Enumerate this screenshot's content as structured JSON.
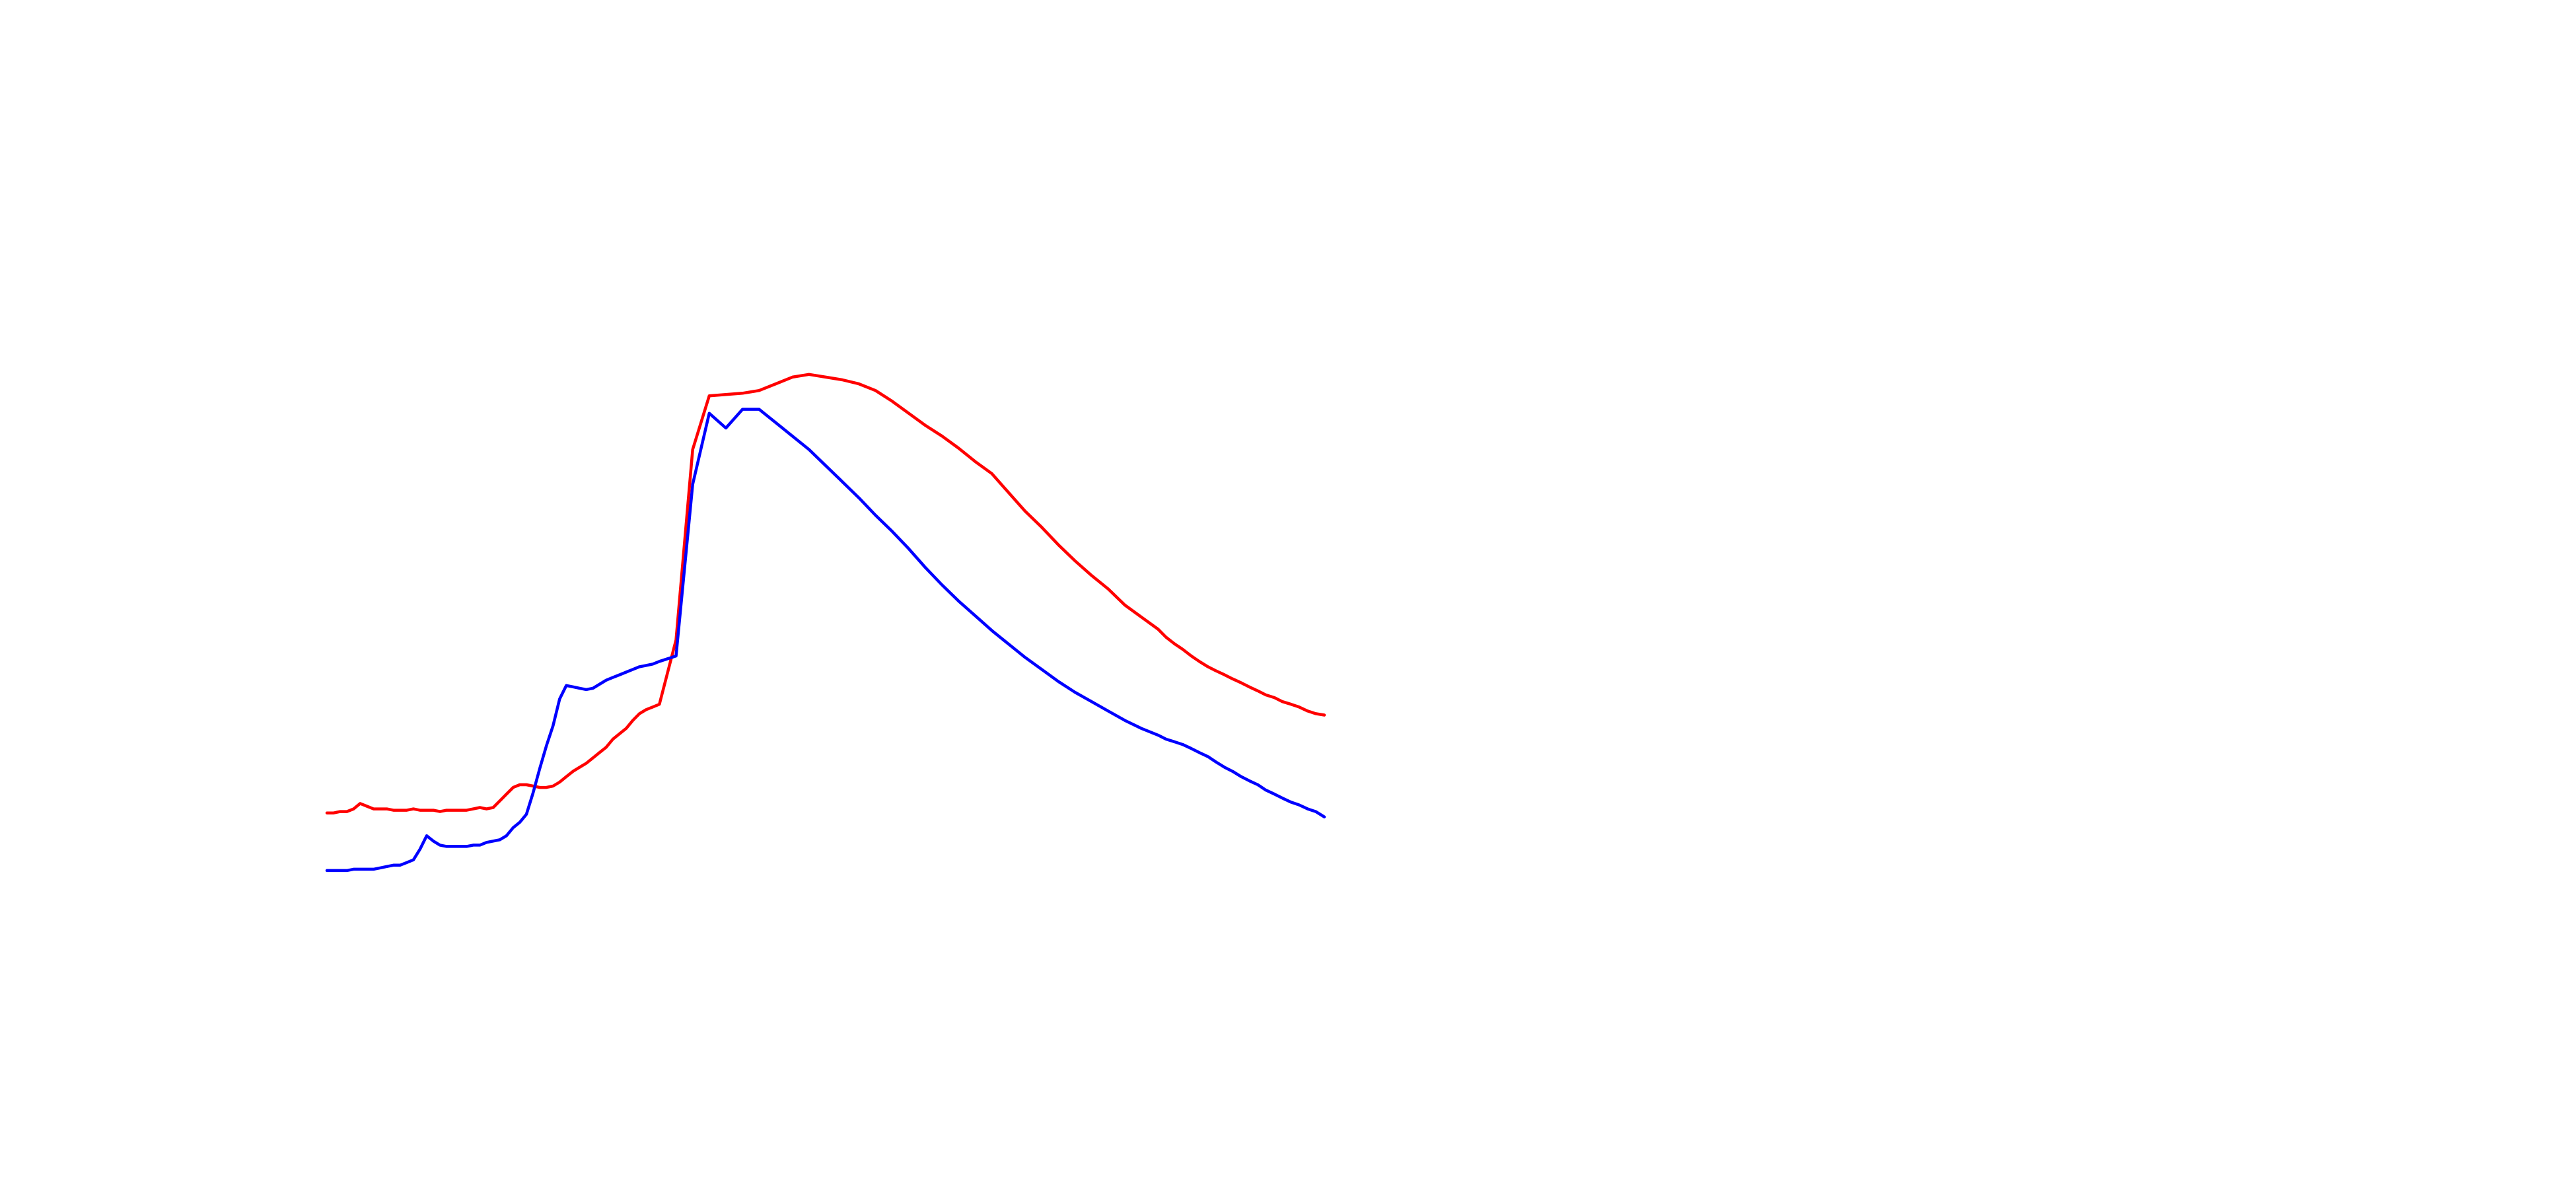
{
  "chart_data": {
    "type": "line",
    "x_range": [
      0,
      1500
    ],
    "y_range": [
      0,
      500
    ],
    "x": [
      0,
      10,
      20,
      30,
      40,
      50,
      60,
      70,
      80,
      90,
      100,
      110,
      120,
      130,
      140,
      150,
      160,
      170,
      180,
      190,
      200,
      210,
      220,
      230,
      240,
      250,
      260,
      270,
      280,
      290,
      300,
      310,
      320,
      330,
      340,
      350,
      360,
      370,
      380,
      390,
      400,
      410,
      420,
      430,
      440,
      450,
      460,
      470,
      480,
      490,
      500,
      525,
      550,
      575,
      600,
      625,
      650,
      675,
      700,
      725,
      750,
      775,
      800,
      825,
      850,
      875,
      900,
      925,
      950,
      975,
      1000,
      1025,
      1050,
      1075,
      1100,
      1125,
      1150,
      1175,
      1200,
      1225,
      1250,
      1262,
      1275,
      1287,
      1300,
      1312,
      1325,
      1337,
      1350,
      1362,
      1375,
      1387,
      1400,
      1412,
      1425,
      1437,
      1450,
      1462,
      1475,
      1487,
      1500
    ],
    "series": [
      {
        "color": "#ff0000",
        "values": [
          45,
          45,
          46,
          46,
          48,
          52,
          50,
          48,
          48,
          48,
          47,
          47,
          47,
          48,
          47,
          47,
          47,
          46,
          47,
          47,
          47,
          47,
          48,
          49,
          48,
          49,
          54,
          59,
          64,
          66,
          66,
          65,
          64,
          64,
          65,
          68,
          72,
          76,
          79,
          82,
          86,
          90,
          94,
          100,
          104,
          108,
          114,
          119,
          122,
          124,
          126,
          174,
          316,
          356,
          357,
          358,
          360,
          365,
          370,
          372,
          370,
          368,
          365,
          360,
          352,
          343,
          334,
          326,
          317,
          307,
          298,
          284,
          270,
          258,
          245,
          233,
          222,
          212,
          200,
          191,
          182,
          176,
          171,
          167,
          162,
          158,
          154,
          151,
          148,
          145,
          142,
          139,
          136,
          133,
          131,
          128,
          126,
          124,
          121,
          119,
          118
        ]
      },
      {
        "color": "#0000ff",
        "values": [
          2,
          2,
          2,
          2,
          3,
          3,
          3,
          3,
          4,
          5,
          6,
          6,
          8,
          10,
          18,
          28,
          24,
          21,
          20,
          20,
          20,
          20,
          21,
          21,
          23,
          24,
          25,
          28,
          34,
          38,
          44,
          60,
          78,
          95,
          110,
          130,
          140,
          139,
          138,
          137,
          138,
          141,
          144,
          146,
          148,
          150,
          152,
          154,
          155,
          156,
          158,
          162,
          290,
          343,
          332,
          346,
          346,
          336,
          326,
          316,
          304,
          292,
          280,
          267,
          255,
          242,
          228,
          215,
          203,
          192,
          181,
          171,
          161,
          152,
          143,
          135,
          128,
          121,
          114,
          108,
          103,
          100,
          98,
          96,
          93,
          90,
          87,
          83,
          79,
          76,
          72,
          69,
          66,
          62,
          59,
          56,
          53,
          51,
          48,
          46,
          42
        ]
      }
    ]
  }
}
